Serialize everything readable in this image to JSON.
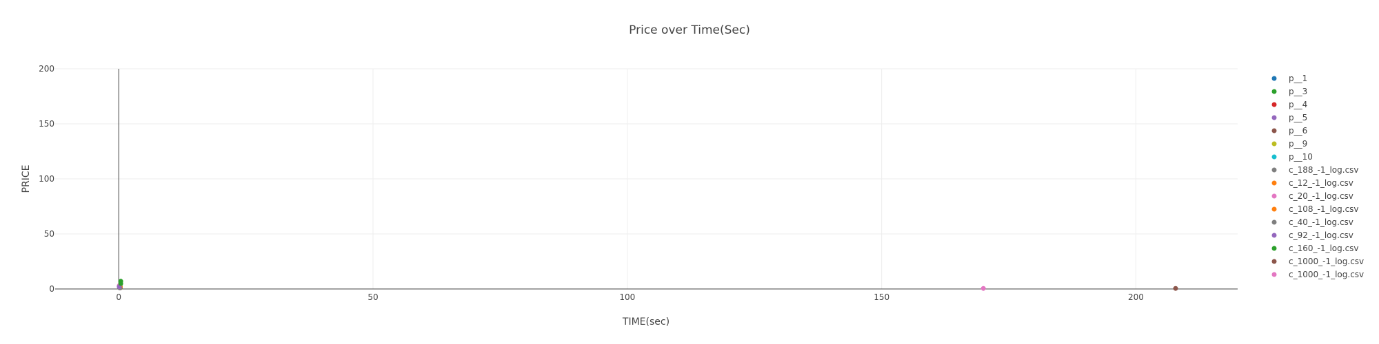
{
  "chart_data": {
    "type": "scatter",
    "title": "Price over Time(Sec)",
    "xlabel": "TIME(sec)",
    "ylabel": "PRICE",
    "xlim": [
      -12.5,
      220
    ],
    "ylim": [
      0,
      200
    ],
    "x_ticks": [
      0,
      50,
      100,
      150,
      200
    ],
    "y_ticks": [
      0,
      50,
      100,
      150,
      200
    ],
    "grid": true,
    "legend_position": "right",
    "series": [
      {
        "name": "p__1",
        "color": "#1f77b4",
        "points": [
          [
            0.3,
            2
          ]
        ]
      },
      {
        "name": "p__3",
        "color": "#2ca02c",
        "points": [
          [
            0.4,
            7
          ]
        ]
      },
      {
        "name": "p__4",
        "color": "#d62728",
        "points": [
          [
            0.2,
            3
          ]
        ]
      },
      {
        "name": "p__5",
        "color": "#9467bd",
        "points": [
          [
            0.1,
            2
          ]
        ]
      },
      {
        "name": "p__6",
        "color": "#8c564b",
        "points": [
          [
            0.3,
            1
          ]
        ]
      },
      {
        "name": "p__9",
        "color": "#bcbd22",
        "points": [
          [
            0.2,
            2
          ]
        ]
      },
      {
        "name": "p__10",
        "color": "#17becf",
        "points": [
          [
            0.3,
            3
          ]
        ]
      },
      {
        "name": "c_188_-1_log.csv",
        "color": "#7f7f7f",
        "points": [
          [
            0.2,
            1
          ]
        ]
      },
      {
        "name": "c_12_-1_log.csv",
        "color": "#ff7f0e",
        "points": [
          [
            0.2,
            2
          ]
        ]
      },
      {
        "name": "c_20_-1_log.csv",
        "color": "#e377c2",
        "points": [
          [
            0.1,
            3
          ]
        ]
      },
      {
        "name": "c_108_-1_log.csv",
        "color": "#ff7f0e",
        "points": [
          [
            0.3,
            2
          ]
        ]
      },
      {
        "name": "c_40_-1_log.csv",
        "color": "#7f7f7f",
        "points": [
          [
            0.2,
            1
          ]
        ]
      },
      {
        "name": "c_92_-1_log.csv",
        "color": "#9467bd",
        "points": [
          [
            0.1,
            2
          ]
        ]
      },
      {
        "name": "c_160_-1_log.csv",
        "color": "#2ca02c",
        "points": [
          [
            0.4,
            5
          ]
        ]
      },
      {
        "name": "c_1000_-1_log.csv",
        "color": "#8c564b",
        "points": [
          [
            207.8,
            0.5
          ]
        ]
      },
      {
        "name": "c_1000_-1_log.csv",
        "color": "#e377c2",
        "points": [
          [
            170,
            0.5
          ]
        ]
      }
    ]
  }
}
